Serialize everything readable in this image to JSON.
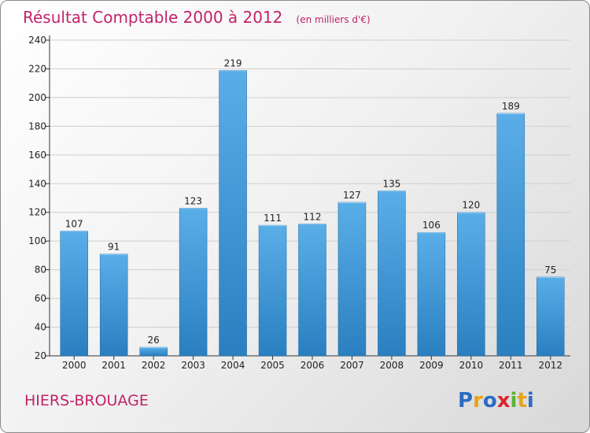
{
  "chart_data": {
    "type": "bar",
    "title": "Résultat Comptable 2000 à 2012",
    "subtitle": "(en milliers d'€)",
    "categories": [
      "2000",
      "2001",
      "2002",
      "2003",
      "2004",
      "2005",
      "2006",
      "2007",
      "2008",
      "2009",
      "2010",
      "2011",
      "2012"
    ],
    "values": [
      107,
      91,
      26,
      123,
      219,
      111,
      112,
      127,
      135,
      106,
      120,
      189,
      75
    ],
    "ylim": [
      20,
      240
    ],
    "yticks": [
      20,
      40,
      60,
      80,
      100,
      120,
      140,
      160,
      180,
      200,
      220,
      240
    ],
    "grid": true,
    "xlabel": "",
    "ylabel": "",
    "bar_color_top": "#5aaee8",
    "bar_color_bottom": "#2a7fc0"
  },
  "commune": "HIERS-BROUAGE",
  "logo": {
    "letters": [
      "P",
      "r",
      "o",
      "x",
      "i",
      "t",
      "i"
    ],
    "colors": [
      "#2b6cc4",
      "#e8a21a",
      "#2b6cc4",
      "#d8262c",
      "#5bb431",
      "#e8a21a",
      "#2b6cc4"
    ]
  }
}
